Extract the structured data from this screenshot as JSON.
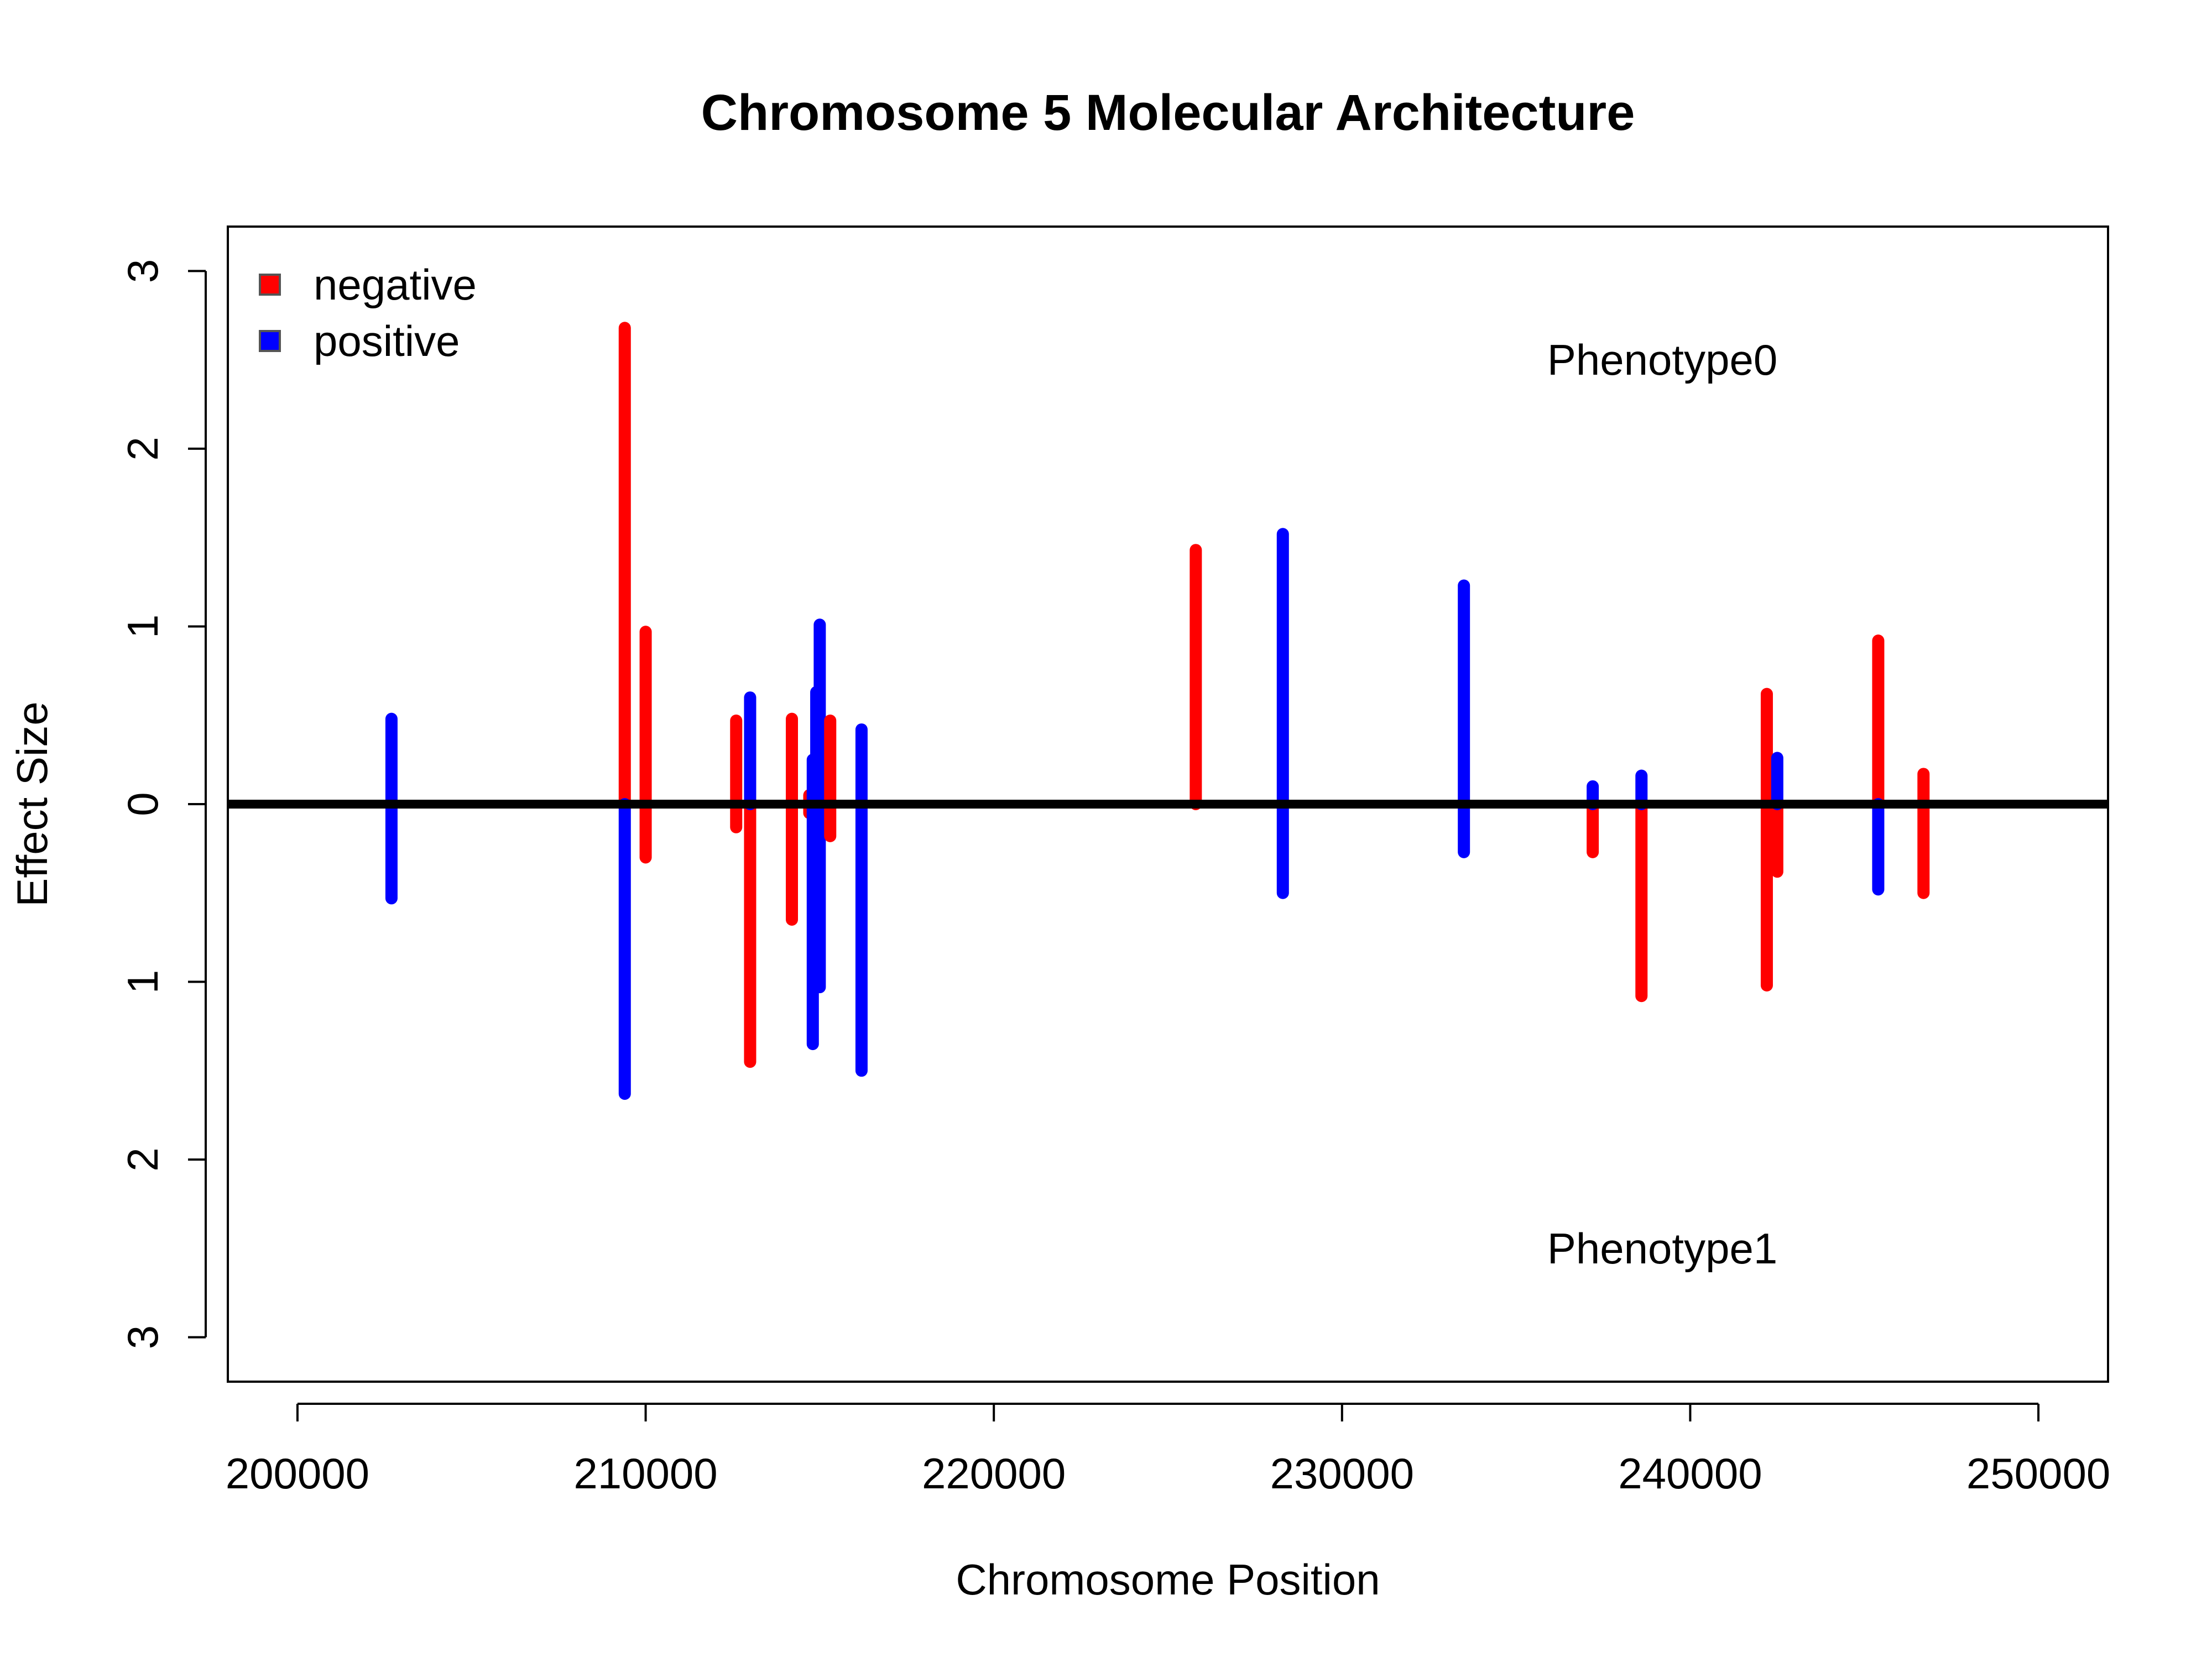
{
  "chart_data": {
    "type": "bar",
    "title": "Chromosome 5 Molecular Architecture",
    "xlabel": "Chromosome Position",
    "ylabel": "Effect Size",
    "xlim": [
      198000,
      252000
    ],
    "ylim": [
      -3.25,
      3.25
    ],
    "x_ticks": [
      200000,
      210000,
      220000,
      230000,
      240000,
      250000
    ],
    "x_tick_labels": [
      "200000",
      "210000",
      "220000",
      "230000",
      "240000",
      "250000"
    ],
    "y_ticks": [
      3,
      2,
      1,
      0,
      -1,
      -2,
      -3
    ],
    "y_tick_labels": [
      "3",
      "2",
      "1",
      "0",
      "1",
      "2",
      "3"
    ],
    "baseline": 0,
    "legend": {
      "position": "top-left",
      "entries": [
        {
          "label": "negative",
          "color": "#ff0000"
        },
        {
          "label": "positive",
          "color": "#0000ff"
        }
      ]
    },
    "annotations": [
      {
        "text": "Phenotype0",
        "x": 239200,
        "y": 2.5
      },
      {
        "text": "Phenotype1",
        "x": 239200,
        "y": -2.5
      }
    ],
    "segments": [
      {
        "x": 202700,
        "y0": -0.53,
        "y1": 0.48,
        "color": "#0000ff"
      },
      {
        "x": 209400,
        "y0": -0.02,
        "y1": 2.68,
        "color": "#ff0000"
      },
      {
        "x": 209400,
        "y0": -1.63,
        "y1": 0.0,
        "color": "#0000ff"
      },
      {
        "x": 210000,
        "y0": -0.3,
        "y1": 0.97,
        "color": "#ff0000"
      },
      {
        "x": 212600,
        "y0": -0.13,
        "y1": 0.47,
        "color": "#ff0000"
      },
      {
        "x": 213000,
        "y0": -1.45,
        "y1": 0.0,
        "color": "#ff0000"
      },
      {
        "x": 213000,
        "y0": 0.0,
        "y1": 0.6,
        "color": "#0000ff"
      },
      {
        "x": 214200,
        "y0": -0.65,
        "y1": 0.48,
        "color": "#ff0000"
      },
      {
        "x": 214700,
        "y0": -0.05,
        "y1": 0.05,
        "color": "#ff0000"
      },
      {
        "x": 214800,
        "y0": -1.35,
        "y1": 0.25,
        "color": "#0000ff"
      },
      {
        "x": 214900,
        "y0": -0.5,
        "y1": 0.63,
        "color": "#0000ff"
      },
      {
        "x": 215000,
        "y0": -1.03,
        "y1": 1.01,
        "color": "#0000ff"
      },
      {
        "x": 215300,
        "y0": -0.18,
        "y1": 0.47,
        "color": "#ff0000"
      },
      {
        "x": 216200,
        "y0": -1.5,
        "y1": 0.42,
        "color": "#0000ff"
      },
      {
        "x": 225800,
        "y0": 0.0,
        "y1": 1.43,
        "color": "#ff0000"
      },
      {
        "x": 228300,
        "y0": -0.5,
        "y1": 1.52,
        "color": "#0000ff"
      },
      {
        "x": 233500,
        "y0": -0.27,
        "y1": 1.23,
        "color": "#0000ff"
      },
      {
        "x": 237200,
        "y0": -0.27,
        "y1": 0.0,
        "color": "#ff0000"
      },
      {
        "x": 237200,
        "y0": 0.0,
        "y1": 0.1,
        "color": "#0000ff"
      },
      {
        "x": 238600,
        "y0": -1.08,
        "y1": 0.0,
        "color": "#ff0000"
      },
      {
        "x": 238600,
        "y0": 0.0,
        "y1": 0.16,
        "color": "#0000ff"
      },
      {
        "x": 242200,
        "y0": -1.02,
        "y1": 0.62,
        "color": "#ff0000"
      },
      {
        "x": 242500,
        "y0": -0.38,
        "y1": 0.0,
        "color": "#ff0000"
      },
      {
        "x": 242500,
        "y0": 0.0,
        "y1": 0.26,
        "color": "#0000ff"
      },
      {
        "x": 245400,
        "y0": 0.0,
        "y1": 0.92,
        "color": "#ff0000"
      },
      {
        "x": 245400,
        "y0": -0.48,
        "y1": 0.0,
        "color": "#0000ff"
      },
      {
        "x": 246700,
        "y0": -0.5,
        "y1": 0.17,
        "color": "#ff0000"
      }
    ]
  }
}
